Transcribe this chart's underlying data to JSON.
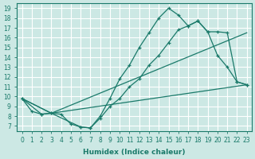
{
  "xlabel": "Humidex (Indice chaleur)",
  "xlim": [
    -0.5,
    23.5
  ],
  "ylim": [
    6.5,
    19.5
  ],
  "xticks": [
    0,
    1,
    2,
    3,
    4,
    5,
    6,
    7,
    8,
    9,
    10,
    11,
    12,
    13,
    14,
    15,
    16,
    17,
    18,
    19,
    20,
    21,
    22,
    23
  ],
  "yticks": [
    7,
    8,
    9,
    10,
    11,
    12,
    13,
    14,
    15,
    16,
    17,
    18,
    19
  ],
  "bg_color": "#cce8e4",
  "grid_color": "#ffffff",
  "line_color": "#1a7a6a",
  "lines": [
    {
      "x": [
        0,
        1,
        2,
        3,
        4,
        5,
        6,
        7,
        8,
        9,
        10,
        11,
        12,
        13,
        14,
        15,
        16,
        17,
        18,
        19,
        20,
        21,
        22,
        23
      ],
      "y": [
        9.8,
        8.5,
        8.2,
        8.3,
        8.2,
        7.2,
        6.9,
        6.8,
        8.0,
        9.8,
        11.8,
        13.2,
        15.0,
        16.5,
        18.0,
        19.0,
        18.3,
        17.2,
        17.7,
        16.6,
        14.2,
        13.0,
        11.5,
        11.2
      ]
    },
    {
      "x": [
        0,
        2,
        3,
        6,
        7,
        8,
        9,
        10,
        11,
        12,
        13,
        14,
        15,
        16,
        17,
        18,
        19,
        20,
        21,
        22,
        23
      ],
      "y": [
        9.8,
        8.2,
        8.3,
        6.9,
        6.8,
        7.8,
        9.0,
        9.8,
        11.0,
        11.8,
        13.2,
        14.2,
        15.5,
        16.8,
        17.2,
        17.7,
        16.6,
        16.6,
        16.5,
        11.5,
        11.2
      ]
    },
    {
      "x": [
        0,
        3,
        23
      ],
      "y": [
        9.8,
        8.3,
        16.5
      ]
    },
    {
      "x": [
        0,
        3,
        23
      ],
      "y": [
        9.8,
        8.3,
        11.2
      ]
    }
  ]
}
